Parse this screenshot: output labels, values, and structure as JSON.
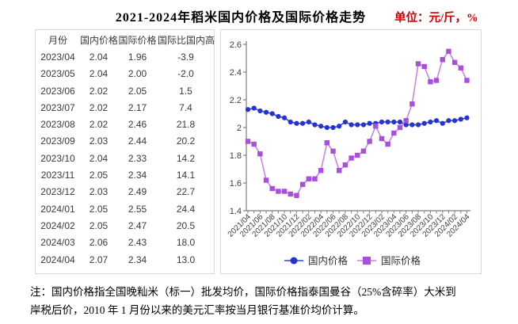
{
  "header": {
    "title": "2021-2024年稻米国内价格及国际价格走势",
    "unit_label": "单位：元/斤，%"
  },
  "table": {
    "headers": [
      "月份",
      "国内价格",
      "国际价格",
      "国际比国内高"
    ],
    "rows": [
      [
        "2023/04",
        "2.04",
        "1.96",
        "-3.9"
      ],
      [
        "2023/05",
        "2.04",
        "2.00",
        "-2.0"
      ],
      [
        "2023/06",
        "2.02",
        "2.05",
        "1.5"
      ],
      [
        "2023/07",
        "2.02",
        "2.17",
        "7.4"
      ],
      [
        "2023/08",
        "2.02",
        "2.46",
        "21.8"
      ],
      [
        "2023/09",
        "2.03",
        "2.44",
        "20.2"
      ],
      [
        "2023/10",
        "2.04",
        "2.33",
        "14.2"
      ],
      [
        "2023/11",
        "2.05",
        "2.34",
        "14.1"
      ],
      [
        "2023/12",
        "2.03",
        "2.49",
        "22.7"
      ],
      [
        "2024/01",
        "2.05",
        "2.55",
        "24.4"
      ],
      [
        "2024/02",
        "2.05",
        "2.47",
        "20.5"
      ],
      [
        "2024/03",
        "2.06",
        "2.43",
        "18.0"
      ],
      [
        "2024/04",
        "2.07",
        "2.34",
        "13.0"
      ]
    ]
  },
  "chart_data": {
    "type": "line",
    "title": "",
    "xlabel": "",
    "ylabel": "",
    "ylim": [
      1.4,
      2.6
    ],
    "yticks": [
      1.4,
      1.6,
      1.8,
      2,
      2.2,
      2.4,
      2.6
    ],
    "grid": false,
    "legend_position": "bottom",
    "x_tick_step": 2,
    "x": [
      "2021/04",
      "2021/05",
      "2021/06",
      "2021/07",
      "2021/08",
      "2021/09",
      "2021/10",
      "2021/11",
      "2021/12",
      "2022/01",
      "2022/02",
      "2022/03",
      "2022/04",
      "2022/05",
      "2022/06",
      "2022/07",
      "2022/08",
      "2022/09",
      "2022/10",
      "2022/11",
      "2022/12",
      "2023/01",
      "2023/02",
      "2023/03",
      "2023/04",
      "2023/05",
      "2023/06",
      "2023/07",
      "2023/08",
      "2023/09",
      "2023/10",
      "2023/11",
      "2023/12",
      "2024/01",
      "2024/02",
      "2024/03",
      "2024/04"
    ],
    "series": [
      {
        "name": "国内价格",
        "marker": "circle",
        "color": "#2433d8",
        "line_color": "#2e40e0",
        "values": [
          2.13,
          2.14,
          2.12,
          2.11,
          2.1,
          2.08,
          2.07,
          2.04,
          2.03,
          2.03,
          2.04,
          2.02,
          2.01,
          2.0,
          2.0,
          2.01,
          2.04,
          2.02,
          2.02,
          2.02,
          2.03,
          2.03,
          2.04,
          2.04,
          2.04,
          2.04,
          2.02,
          2.02,
          2.02,
          2.03,
          2.04,
          2.05,
          2.03,
          2.05,
          2.05,
          2.06,
          2.07
        ]
      },
      {
        "name": "国际价格",
        "marker": "square",
        "color": "#a94fdb",
        "line_color": "#c77fe6",
        "values": [
          1.9,
          1.88,
          1.81,
          1.62,
          1.56,
          1.54,
          1.54,
          1.52,
          1.51,
          1.59,
          1.63,
          1.63,
          1.69,
          1.89,
          1.83,
          1.69,
          1.73,
          1.78,
          1.8,
          1.83,
          1.9,
          2.01,
          1.92,
          1.88,
          1.96,
          2.0,
          2.05,
          2.17,
          2.46,
          2.44,
          2.33,
          2.34,
          2.49,
          2.55,
          2.47,
          2.43,
          2.34
        ]
      }
    ]
  },
  "note": {
    "line1": "注：国内价格指全国晚籼米（标一）批发均价，国际价格指泰国曼谷（25%含碎率）大米到",
    "line2": "岸税后价，2010 年 1 月份以来的美元汇率按当月银行基准价均价计算。"
  },
  "colors": {
    "unit_text": "#d00000",
    "axis_text": "#404040",
    "axis_line": "#7f7f7f",
    "table_text": "#3a3a3a",
    "panel_border": "#d9d9d9"
  }
}
